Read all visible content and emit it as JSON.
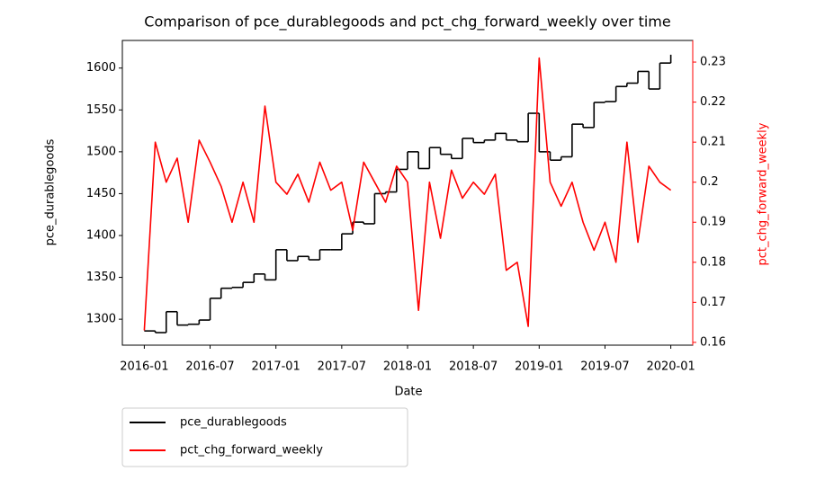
{
  "chart_data": {
    "type": "line",
    "title": "Comparison of pce_durablegoods and pct_chg_forward_weekly over time",
    "x_label": "Date",
    "y_label": "pce_durablegoods",
    "y2_label": "pct_chg_forward_weekly",
    "x": [
      "2016-01",
      "2016-02",
      "2016-03",
      "2016-04",
      "2016-05",
      "2016-06",
      "2016-07",
      "2016-08",
      "2016-09",
      "2016-10",
      "2016-11",
      "2016-12",
      "2017-01",
      "2017-02",
      "2017-03",
      "2017-04",
      "2017-05",
      "2017-06",
      "2017-07",
      "2017-08",
      "2017-09",
      "2017-10",
      "2017-11",
      "2017-12",
      "2018-01",
      "2018-02",
      "2018-03",
      "2018-04",
      "2018-05",
      "2018-06",
      "2018-07",
      "2018-08",
      "2018-09",
      "2018-10",
      "2018-11",
      "2018-12",
      "2019-01",
      "2019-02",
      "2019-03",
      "2019-04",
      "2019-05",
      "2019-06",
      "2019-07",
      "2019-08",
      "2019-09",
      "2019-10",
      "2019-11",
      "2019-12",
      "2020-01"
    ],
    "xlim": [
      "2015-11",
      "2020-03"
    ],
    "xticks": [
      "2016-01",
      "2016-07",
      "2017-01",
      "2017-07",
      "2018-01",
      "2018-07",
      "2019-01",
      "2019-07",
      "2020-01"
    ],
    "ylim": [
      1269,
      1633
    ],
    "yticks": [
      1300,
      1350,
      1400,
      1450,
      1500,
      1550,
      1600
    ],
    "y2lim": [
      0.1593,
      0.2354
    ],
    "y2ticks": [
      0.16,
      0.17,
      0.18,
      0.19,
      0.2,
      0.21,
      0.22,
      0.23
    ],
    "y2_color": "#ff0000",
    "legend": "below-left",
    "series": [
      {
        "name": "pce_durablegoods",
        "color": "#000000",
        "step": "post",
        "values": [
          1286,
          1284,
          1309,
          1293,
          1294,
          1299,
          1325,
          1337,
          1338,
          1344,
          1354,
          1347,
          1383,
          1370,
          1375,
          1371,
          1383,
          1383,
          1402,
          1416,
          1414,
          1450,
          1452,
          1479,
          1500,
          1480,
          1505,
          1497,
          1492,
          1516,
          1511,
          1514,
          1522,
          1514,
          1512,
          1546,
          1500,
          1490,
          1494,
          1533,
          1529,
          1559,
          1560,
          1578,
          1582,
          1596,
          1575,
          1606,
          1616
        ]
      },
      {
        "name": "pct_chg_forward_weekly",
        "color": "#ff0000",
        "axis": "y2",
        "values": [
          0.163,
          0.21,
          0.2,
          0.206,
          0.19,
          0.2105,
          0.205,
          0.199,
          0.19,
          0.2,
          0.19,
          0.219,
          0.2,
          0.197,
          0.202,
          0.195,
          0.205,
          0.198,
          0.2,
          0.188,
          0.205,
          0.2,
          0.195,
          0.204,
          0.2,
          0.168,
          0.2,
          0.186,
          0.203,
          0.196,
          0.2,
          0.197,
          0.202,
          0.178,
          0.18,
          0.164,
          0.231,
          0.2,
          0.194,
          0.2,
          0.19,
          0.183,
          0.19,
          0.18,
          0.21,
          0.185,
          0.204,
          0.2,
          0.198
        ]
      }
    ]
  }
}
